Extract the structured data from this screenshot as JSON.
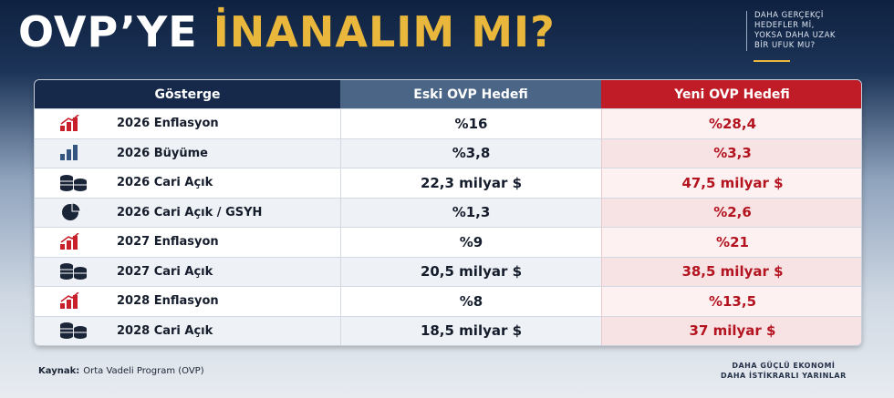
{
  "header": {
    "title_part1": "OVP’YE",
    "title_part2": "İNANALIM MI?",
    "tagline": [
      "DAHA GERÇEKÇİ",
      "HEDEFLER Mİ,",
      "YOKSA DAHA UZAK",
      "BİR UFUK MU?"
    ]
  },
  "table": {
    "columns": [
      "Gösterge",
      "Eski OVP Hedefi",
      "Yeni OVP Hedefi"
    ],
    "rows": [
      [
        "2026 Enflasyon",
        "%16",
        "%28,4"
      ],
      [
        "2026 Büyüme",
        "%3,8",
        "%3,3"
      ],
      [
        "2026 Cari Açık",
        "22,3 milyar $",
        "47,5 milyar $"
      ],
      [
        "2026 Cari Açık / GSYH",
        "%1,3",
        "%2,6"
      ],
      [
        "2027 Enflasyon",
        "%9",
        "%21"
      ],
      [
        "2027 Cari Açık",
        "20,5 milyar $",
        "38,5 milyar $"
      ],
      [
        "2028 Enflasyon",
        "%8",
        "%13,5"
      ],
      [
        "2028 Cari Açık",
        "18,5 milyar $",
        "37 milyar $"
      ]
    ]
  },
  "footer": {
    "source_label": "Kaynak:",
    "source": "Orta Vadeli Program (OVP)",
    "slogan": [
      "DAHA GÜÇLÜ EKONOMİ",
      "DAHA İSTİKRARLI YARINLAR"
    ]
  }
}
